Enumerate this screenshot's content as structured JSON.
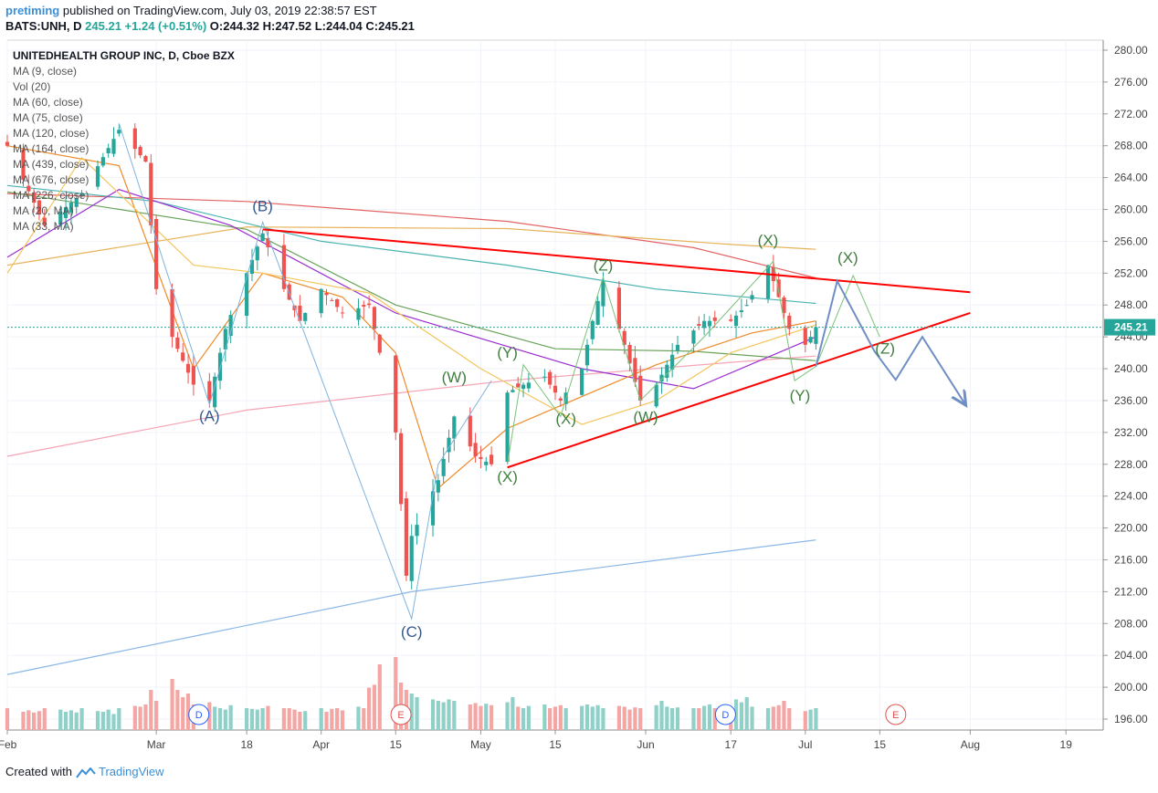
{
  "header": {
    "user": "pretiming",
    "published_text": "published on TradingView.com, July 03, 2019 22:38:57 EST",
    "symbol": "BATS:UNH, D",
    "last": "245.21",
    "change": "+1.24 (+0.51%)",
    "open": "O:244.32",
    "high": "H:247.52",
    "low": "L:244.04",
    "close": "C:245.21"
  },
  "legend": {
    "title": "UNITEDHEALTH GROUP INC, D, Cboe BZX",
    "items": [
      "MA (9, close)",
      "Vol (20)",
      "MA (60, close)",
      "MA (75, close)",
      "MA (120, close)",
      "MA (164, close)",
      "MA (439, close)",
      "MA (676, close)",
      "MA (226, close)",
      "MA (20, MA)",
      "MA (33, MA)"
    ]
  },
  "footer": {
    "created_with": "Created with",
    "brand": "TradingView"
  },
  "colors": {
    "up": "#26a69a",
    "down": "#ef5350",
    "vol_up": "#8fd1c9",
    "vol_down": "#f4a6a4",
    "trend": "#ff0000",
    "wave_green": "#3f7e3f",
    "wave_blue": "#36588c",
    "projection": "#6f8fc4",
    "price_tag": "#26a69a"
  },
  "chart_data": {
    "type": "candlestick",
    "title": "UNITEDHEALTH GROUP INC, D, Cboe BZX",
    "y_axis": {
      "min": 196,
      "max": 280,
      "ticks": [
        "196.00",
        "200.00",
        "204.00",
        "208.00",
        "212.00",
        "216.00",
        "220.00",
        "224.00",
        "228.00",
        "232.00",
        "236.00",
        "240.00",
        "244.00",
        "248.00",
        "252.00",
        "256.00",
        "260.00",
        "264.00",
        "268.00",
        "272.00",
        "276.00",
        "280.00"
      ]
    },
    "x_axis": {
      "start": "2019-02-01",
      "end": "2019-08-26",
      "ticks": [
        {
          "date": "2019-02-01",
          "label": "Feb"
        },
        {
          "date": "2019-03-01",
          "label": "Mar"
        },
        {
          "date": "2019-03-18",
          "label": "18"
        },
        {
          "date": "2019-04-01",
          "label": "Apr"
        },
        {
          "date": "2019-04-15",
          "label": "15"
        },
        {
          "date": "2019-05-01",
          "label": "May"
        },
        {
          "date": "2019-05-15",
          "label": "15"
        },
        {
          "date": "2019-06-01",
          "label": "Jun"
        },
        {
          "date": "2019-06-17",
          "label": "17"
        },
        {
          "date": "2019-07-01",
          "label": "Jul"
        },
        {
          "date": "2019-07-15",
          "label": "15"
        },
        {
          "date": "2019-08-01",
          "label": "Aug"
        },
        {
          "date": "2019-08-19",
          "label": "19"
        }
      ]
    },
    "last_price": "245.21",
    "anchors": [
      {
        "date": "2019-02-01",
        "close": 268
      },
      {
        "date": "2019-02-08",
        "close": 258
      },
      {
        "date": "2019-02-15",
        "close": 262
      },
      {
        "date": "2019-02-22",
        "close": 270
      },
      {
        "date": "2019-02-27",
        "close": 266
      },
      {
        "date": "2019-03-01",
        "close": 250
      },
      {
        "date": "2019-03-04",
        "close": 244
      },
      {
        "date": "2019-03-08",
        "close": 238
      },
      {
        "date": "2019-03-11",
        "close": 236
      },
      {
        "date": "2019-03-14",
        "close": 245
      },
      {
        "date": "2019-03-18",
        "close": 252
      },
      {
        "date": "2019-03-21",
        "close": 257
      },
      {
        "date": "2019-03-25",
        "close": 250
      },
      {
        "date": "2019-03-28",
        "close": 246
      },
      {
        "date": "2019-04-01",
        "close": 250
      },
      {
        "date": "2019-04-05",
        "close": 247
      },
      {
        "date": "2019-04-10",
        "close": 248
      },
      {
        "date": "2019-04-12",
        "close": 242
      },
      {
        "date": "2019-04-15",
        "close": 232
      },
      {
        "date": "2019-04-16",
        "close": 223
      },
      {
        "date": "2019-04-17",
        "close": 214
      },
      {
        "date": "2019-04-18",
        "close": 219
      },
      {
        "date": "2019-04-23",
        "close": 226
      },
      {
        "date": "2019-04-26",
        "close": 234
      },
      {
        "date": "2019-04-30",
        "close": 229
      },
      {
        "date": "2019-05-03",
        "close": 228
      },
      {
        "date": "2019-05-06",
        "close": 237
      },
      {
        "date": "2019-05-09",
        "close": 238
      },
      {
        "date": "2019-05-13",
        "close": 239
      },
      {
        "date": "2019-05-16",
        "close": 236
      },
      {
        "date": "2019-05-20",
        "close": 240
      },
      {
        "date": "2019-05-22",
        "close": 246
      },
      {
        "date": "2019-05-24",
        "close": 251
      },
      {
        "date": "2019-05-28",
        "close": 243
      },
      {
        "date": "2019-05-31",
        "close": 236
      },
      {
        "date": "2019-06-03",
        "close": 238
      },
      {
        "date": "2019-06-07",
        "close": 243
      },
      {
        "date": "2019-06-12",
        "close": 246
      },
      {
        "date": "2019-06-17",
        "close": 246
      },
      {
        "date": "2019-06-20",
        "close": 248
      },
      {
        "date": "2019-06-24",
        "close": 253
      },
      {
        "date": "2019-06-26",
        "close": 249
      },
      {
        "date": "2019-06-28",
        "close": 245
      },
      {
        "date": "2019-07-01",
        "close": 243
      },
      {
        "date": "2019-07-02",
        "close": 244
      },
      {
        "date": "2019-07-03",
        "close": 245.21
      }
    ],
    "volume_levels": [
      0.3,
      0.25,
      0.27,
      0.24,
      0.26,
      0.3,
      0.28,
      0.25,
      0.27,
      0.24,
      0.3,
      0.26,
      0.25,
      0.28,
      0.22,
      0.3,
      0.33,
      0.32,
      0.35,
      0.55,
      0.4,
      0.7,
      0.55,
      0.45,
      0.5,
      0.35,
      0.38,
      0.32,
      0.3,
      0.28,
      0.34,
      0.3,
      0.29,
      0.28,
      0.3,
      0.33,
      0.3,
      0.3,
      0.28,
      0.25,
      0.26,
      0.3,
      0.25,
      0.29,
      0.3,
      0.27,
      0.32,
      0.3,
      0.58,
      0.62,
      0.9,
      1.0,
      0.65,
      0.55,
      0.5,
      0.45,
      0.42,
      0.4,
      0.38,
      0.42,
      0.4,
      0.35,
      0.37,
      0.33,
      0.36,
      0.34,
      0.38,
      0.45,
      0.32,
      0.3,
      0.33,
      0.35,
      0.3,
      0.32,
      0.34,
      0.3,
      0.33,
      0.35,
      0.32,
      0.34,
      0.3,
      0.33,
      0.32,
      0.28,
      0.31,
      0.3,
      0.34,
      0.4,
      0.32,
      0.3,
      0.31,
      0.3,
      0.3,
      0.33,
      0.35,
      0.3,
      0.3,
      0.42,
      0.38,
      0.45,
      0.32,
      0.3,
      0.32,
      0.34,
      0.4,
      0.3,
      0.26,
      0.28,
      0.3,
      0.27
    ],
    "trendlines": [
      {
        "name": "upper",
        "from": {
          "date": "2019-03-21",
          "price": 257.5
        },
        "to": {
          "date": "2019-08-01",
          "price": 249.6
        }
      },
      {
        "name": "lower",
        "from": {
          "date": "2019-05-06",
          "price": 227.6
        },
        "to": {
          "date": "2019-08-01",
          "price": 247.0
        }
      }
    ],
    "projection": [
      {
        "date": "2019-07-03",
        "price": 240.3
      },
      {
        "date": "2019-07-07",
        "price": 251.0
      },
      {
        "date": "2019-07-14",
        "price": 242.2
      },
      {
        "date": "2019-07-18",
        "price": 238.6
      },
      {
        "date": "2019-07-23",
        "price": 244.0
      },
      {
        "date": "2019-07-31",
        "price": 235.6
      }
    ],
    "wave_path_abc": [
      {
        "date": "2019-02-22",
        "price": 270.8
      },
      {
        "date": "2019-03-11",
        "price": 235.5
      },
      {
        "date": "2019-03-21",
        "price": 258.4
      },
      {
        "date": "2019-04-18",
        "price": 208.6
      },
      {
        "date": "2019-04-23",
        "price": 228.0
      },
      {
        "date": "2019-05-03",
        "price": 238.5
      }
    ],
    "wave_path_green": [
      {
        "date": "2019-05-06",
        "price": 228.0
      },
      {
        "date": "2019-05-09",
        "price": 240.5
      },
      {
        "date": "2019-05-16",
        "price": 234.0
      },
      {
        "date": "2019-05-24",
        "price": 251.5
      },
      {
        "date": "2019-05-31",
        "price": 236.0
      },
      {
        "date": "2019-06-12",
        "price": 244.0
      },
      {
        "date": "2019-06-25",
        "price": 253.5
      },
      {
        "date": "2019-06-29",
        "price": 238.5
      },
      {
        "date": "2019-07-03",
        "price": 240.3
      },
      {
        "date": "2019-07-10",
        "price": 251.7
      },
      {
        "date": "2019-07-15",
        "price": 244.0
      }
    ],
    "ma_lines": [
      {
        "name": "ma_slow_blue",
        "color": "#8ab7e6",
        "points": [
          [
            "2019-02-01",
            201.6
          ],
          [
            "2019-04-18",
            212.0
          ],
          [
            "2019-07-03",
            218.5
          ]
        ]
      },
      {
        "name": "ma_pink",
        "color": "#f6a5b5",
        "points": [
          [
            "2019-02-01",
            229.0
          ],
          [
            "2019-03-18",
            234.8
          ],
          [
            "2019-05-06",
            238.5
          ],
          [
            "2019-06-17",
            240.8
          ],
          [
            "2019-07-03",
            241.6
          ]
        ]
      },
      {
        "name": "ma_red",
        "color": "#e26262",
        "points": [
          [
            "2019-02-01",
            262.0
          ],
          [
            "2019-03-18",
            261.0
          ],
          [
            "2019-05-06",
            258.5
          ],
          [
            "2019-06-10",
            255.2
          ],
          [
            "2019-07-03",
            251.4
          ]
        ]
      },
      {
        "name": "ma_gold",
        "color": "#e7b35a",
        "points": [
          [
            "2019-02-01",
            253.0
          ],
          [
            "2019-03-18",
            257.8
          ],
          [
            "2019-05-06",
            257.6
          ],
          [
            "2019-06-17",
            255.6
          ],
          [
            "2019-07-03",
            255.0
          ]
        ]
      },
      {
        "name": "ma_teal",
        "color": "#49b3b0",
        "points": [
          [
            "2019-02-01",
            263.0
          ],
          [
            "2019-03-01",
            261.0
          ],
          [
            "2019-04-01",
            256.0
          ],
          [
            "2019-05-06",
            253.0
          ],
          [
            "2019-06-03",
            250.0
          ],
          [
            "2019-07-03",
            248.2
          ]
        ]
      },
      {
        "name": "ma_green",
        "color": "#6aa35a",
        "points": [
          [
            "2019-02-01",
            262.2
          ],
          [
            "2019-03-18",
            257.5
          ],
          [
            "2019-04-15",
            248.0
          ],
          [
            "2019-05-15",
            242.5
          ],
          [
            "2019-06-10",
            242.2
          ],
          [
            "2019-07-03",
            241.0
          ]
        ]
      },
      {
        "name": "ma_purple",
        "color": "#9b2dd1",
        "points": [
          [
            "2019-02-01",
            254.0
          ],
          [
            "2019-02-22",
            262.5
          ],
          [
            "2019-03-15",
            258.0
          ],
          [
            "2019-04-15",
            247.0
          ],
          [
            "2019-05-20",
            240.0
          ],
          [
            "2019-06-10",
            237.5
          ],
          [
            "2019-07-03",
            244.0
          ]
        ]
      },
      {
        "name": "ma_orange",
        "color": "#f08a2a",
        "points": [
          [
            "2019-02-01",
            268.0
          ],
          [
            "2019-02-22",
            265.5
          ],
          [
            "2019-03-08",
            240.0
          ],
          [
            "2019-03-21",
            252.0
          ],
          [
            "2019-04-05",
            249.0
          ],
          [
            "2019-04-15",
            242.0
          ],
          [
            "2019-04-23",
            225.0
          ],
          [
            "2019-05-06",
            232.5
          ],
          [
            "2019-05-20",
            236.5
          ],
          [
            "2019-06-03",
            240.5
          ],
          [
            "2019-06-21",
            244.5
          ],
          [
            "2019-07-03",
            246.0
          ]
        ]
      },
      {
        "name": "ma_light_orange",
        "color": "#f3c55c",
        "points": [
          [
            "2019-02-01",
            252.0
          ],
          [
            "2019-02-15",
            266.5
          ],
          [
            "2019-03-08",
            253.0
          ],
          [
            "2019-03-21",
            252.0
          ],
          [
            "2019-04-10",
            249.5
          ],
          [
            "2019-05-01",
            240.0
          ],
          [
            "2019-05-20",
            233.0
          ],
          [
            "2019-06-03",
            236.0
          ],
          [
            "2019-06-17",
            242.0
          ],
          [
            "2019-07-03",
            245.5
          ]
        ]
      }
    ],
    "wave_labels": [
      {
        "text": "(B)",
        "date": "2019-03-21",
        "price": 259.8,
        "group": "blue"
      },
      {
        "text": "(A)",
        "date": "2019-03-11",
        "price": 233.4,
        "group": "blue"
      },
      {
        "text": "(C)",
        "date": "2019-04-18",
        "price": 206.3,
        "group": "blue"
      },
      {
        "text": "(Y)",
        "date": "2019-05-06",
        "price": 241.4,
        "group": "green"
      },
      {
        "text": "(W)",
        "date": "2019-04-26",
        "price": 238.3,
        "group": "green"
      },
      {
        "text": "(X)",
        "date": "2019-05-06",
        "price": 225.8,
        "group": "green"
      },
      {
        "text": "(X)",
        "date": "2019-05-17",
        "price": 233.1,
        "group": "green"
      },
      {
        "text": "(Z)",
        "date": "2019-05-24",
        "price": 252.3,
        "group": "green"
      },
      {
        "text": "(W)",
        "date": "2019-06-01",
        "price": 233.3,
        "group": "green"
      },
      {
        "text": "(X)",
        "date": "2019-06-24",
        "price": 255.5,
        "group": "green"
      },
      {
        "text": "(Y)",
        "date": "2019-06-30",
        "price": 236.0,
        "group": "green"
      },
      {
        "text": "(X)",
        "date": "2019-07-09",
        "price": 253.3,
        "group": "green"
      },
      {
        "text": "(Z)",
        "date": "2019-07-16",
        "price": 241.9,
        "group": "green"
      }
    ],
    "event_markers": [
      {
        "text": "D",
        "date": "2019-03-09",
        "kind": "dividend"
      },
      {
        "text": "E",
        "date": "2019-04-16",
        "kind": "earnings"
      },
      {
        "text": "D",
        "date": "2019-06-16",
        "kind": "dividend"
      },
      {
        "text": "E",
        "date": "2019-07-18",
        "kind": "earnings"
      }
    ]
  }
}
